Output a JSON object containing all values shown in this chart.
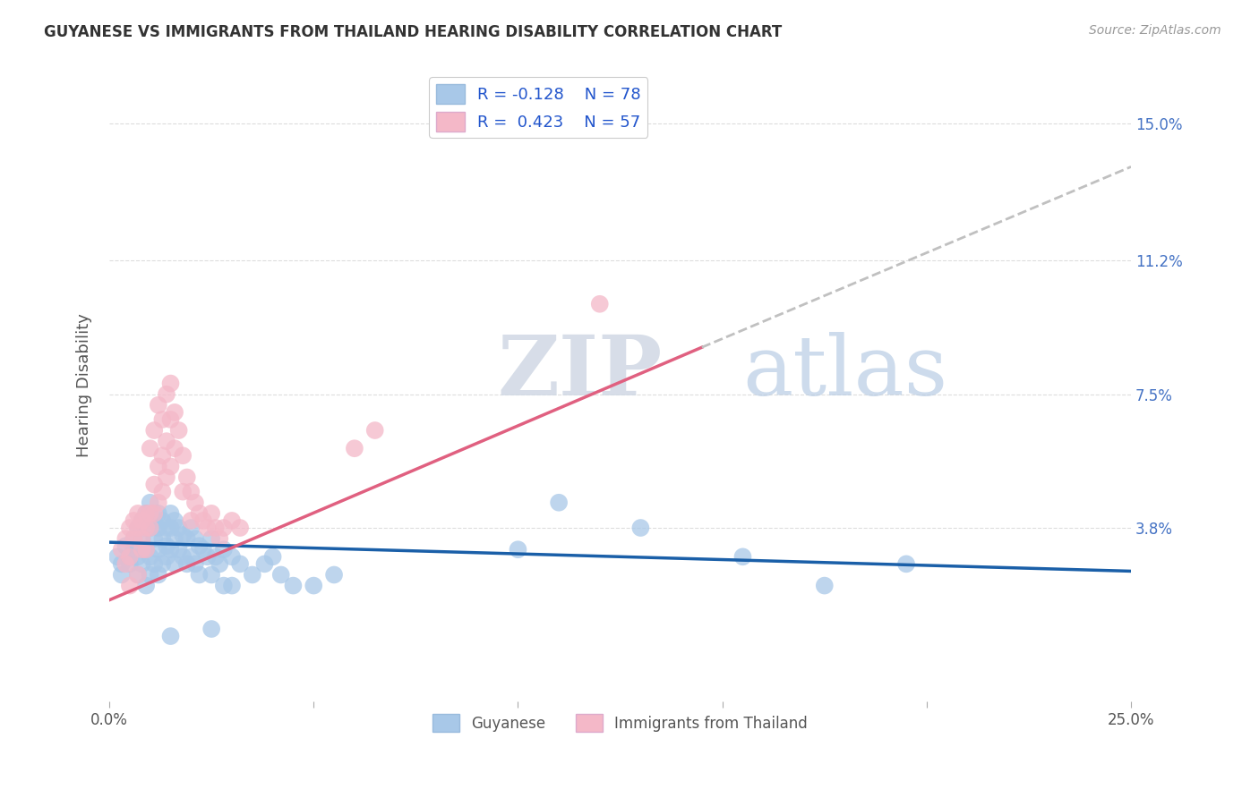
{
  "title": "GUYANESE VS IMMIGRANTS FROM THAILAND HEARING DISABILITY CORRELATION CHART",
  "source": "Source: ZipAtlas.com",
  "ylabel": "Hearing Disability",
  "yticks": [
    "15.0%",
    "11.2%",
    "7.5%",
    "3.8%"
  ],
  "ytick_vals": [
    0.15,
    0.112,
    0.075,
    0.038
  ],
  "xlim": [
    0.0,
    0.25
  ],
  "ylim": [
    -0.01,
    0.165
  ],
  "color_blue": "#a8c8e8",
  "color_pink": "#f4b8c8",
  "color_blue_line": "#1a5fa8",
  "color_pink_line": "#e06080",
  "color_dashed_line": "#c0c0c0",
  "scatter_blue": [
    [
      0.002,
      0.03
    ],
    [
      0.003,
      0.028
    ],
    [
      0.003,
      0.025
    ],
    [
      0.004,
      0.033
    ],
    [
      0.005,
      0.03
    ],
    [
      0.005,
      0.028
    ],
    [
      0.006,
      0.035
    ],
    [
      0.006,
      0.032
    ],
    [
      0.007,
      0.038
    ],
    [
      0.007,
      0.03
    ],
    [
      0.007,
      0.025
    ],
    [
      0.008,
      0.04
    ],
    [
      0.008,
      0.035
    ],
    [
      0.008,
      0.028
    ],
    [
      0.009,
      0.042
    ],
    [
      0.009,
      0.038
    ],
    [
      0.009,
      0.032
    ],
    [
      0.009,
      0.022
    ],
    [
      0.01,
      0.045
    ],
    [
      0.01,
      0.038
    ],
    [
      0.01,
      0.03
    ],
    [
      0.01,
      0.025
    ],
    [
      0.011,
      0.04
    ],
    [
      0.011,
      0.035
    ],
    [
      0.011,
      0.028
    ],
    [
      0.012,
      0.042
    ],
    [
      0.012,
      0.038
    ],
    [
      0.012,
      0.032
    ],
    [
      0.012,
      0.025
    ],
    [
      0.013,
      0.04
    ],
    [
      0.013,
      0.035
    ],
    [
      0.013,
      0.028
    ],
    [
      0.014,
      0.038
    ],
    [
      0.014,
      0.033
    ],
    [
      0.014,
      0.03
    ],
    [
      0.015,
      0.042
    ],
    [
      0.015,
      0.038
    ],
    [
      0.015,
      0.032
    ],
    [
      0.016,
      0.04
    ],
    [
      0.016,
      0.035
    ],
    [
      0.016,
      0.028
    ],
    [
      0.017,
      0.038
    ],
    [
      0.017,
      0.032
    ],
    [
      0.018,
      0.036
    ],
    [
      0.018,
      0.03
    ],
    [
      0.019,
      0.035
    ],
    [
      0.019,
      0.028
    ],
    [
      0.02,
      0.038
    ],
    [
      0.02,
      0.03
    ],
    [
      0.021,
      0.035
    ],
    [
      0.021,
      0.028
    ],
    [
      0.022,
      0.033
    ],
    [
      0.022,
      0.025
    ],
    [
      0.023,
      0.032
    ],
    [
      0.024,
      0.03
    ],
    [
      0.025,
      0.035
    ],
    [
      0.025,
      0.025
    ],
    [
      0.026,
      0.03
    ],
    [
      0.027,
      0.028
    ],
    [
      0.028,
      0.032
    ],
    [
      0.028,
      0.022
    ],
    [
      0.03,
      0.03
    ],
    [
      0.03,
      0.022
    ],
    [
      0.032,
      0.028
    ],
    [
      0.035,
      0.025
    ],
    [
      0.038,
      0.028
    ],
    [
      0.04,
      0.03
    ],
    [
      0.042,
      0.025
    ],
    [
      0.045,
      0.022
    ],
    [
      0.05,
      0.022
    ],
    [
      0.055,
      0.025
    ],
    [
      0.1,
      0.032
    ],
    [
      0.11,
      0.045
    ],
    [
      0.13,
      0.038
    ],
    [
      0.155,
      0.03
    ],
    [
      0.175,
      0.022
    ],
    [
      0.195,
      0.028
    ],
    [
      0.015,
      0.008
    ],
    [
      0.025,
      0.01
    ]
  ],
  "scatter_pink": [
    [
      0.003,
      0.032
    ],
    [
      0.004,
      0.035
    ],
    [
      0.004,
      0.028
    ],
    [
      0.005,
      0.038
    ],
    [
      0.005,
      0.03
    ],
    [
      0.006,
      0.04
    ],
    [
      0.006,
      0.035
    ],
    [
      0.007,
      0.042
    ],
    [
      0.007,
      0.038
    ],
    [
      0.008,
      0.04
    ],
    [
      0.008,
      0.035
    ],
    [
      0.008,
      0.032
    ],
    [
      0.009,
      0.042
    ],
    [
      0.009,
      0.038
    ],
    [
      0.009,
      0.032
    ],
    [
      0.01,
      0.06
    ],
    [
      0.01,
      0.042
    ],
    [
      0.01,
      0.038
    ],
    [
      0.011,
      0.065
    ],
    [
      0.011,
      0.05
    ],
    [
      0.011,
      0.042
    ],
    [
      0.012,
      0.072
    ],
    [
      0.012,
      0.055
    ],
    [
      0.012,
      0.045
    ],
    [
      0.013,
      0.068
    ],
    [
      0.013,
      0.058
    ],
    [
      0.013,
      0.048
    ],
    [
      0.014,
      0.075
    ],
    [
      0.014,
      0.062
    ],
    [
      0.014,
      0.052
    ],
    [
      0.015,
      0.078
    ],
    [
      0.015,
      0.068
    ],
    [
      0.015,
      0.055
    ],
    [
      0.016,
      0.07
    ],
    [
      0.016,
      0.06
    ],
    [
      0.017,
      0.065
    ],
    [
      0.018,
      0.058
    ],
    [
      0.018,
      0.048
    ],
    [
      0.019,
      0.052
    ],
    [
      0.02,
      0.048
    ],
    [
      0.02,
      0.04
    ],
    [
      0.021,
      0.045
    ],
    [
      0.022,
      0.042
    ],
    [
      0.023,
      0.04
    ],
    [
      0.024,
      0.038
    ],
    [
      0.025,
      0.042
    ],
    [
      0.026,
      0.038
    ],
    [
      0.027,
      0.035
    ],
    [
      0.028,
      0.038
    ],
    [
      0.03,
      0.04
    ],
    [
      0.032,
      0.038
    ],
    [
      0.06,
      0.06
    ],
    [
      0.065,
      0.065
    ],
    [
      0.12,
      0.1
    ],
    [
      0.005,
      0.022
    ],
    [
      0.007,
      0.025
    ]
  ],
  "blue_line_x": [
    0.0,
    0.25
  ],
  "blue_line_y": [
    0.034,
    0.026
  ],
  "pink_line_x": [
    0.0,
    0.145
  ],
  "pink_line_y": [
    0.018,
    0.088
  ],
  "dashed_line_x": [
    0.145,
    0.25
  ],
  "dashed_line_y": [
    0.088,
    0.138
  ],
  "background_color": "#ffffff",
  "grid_color": "#dddddd"
}
